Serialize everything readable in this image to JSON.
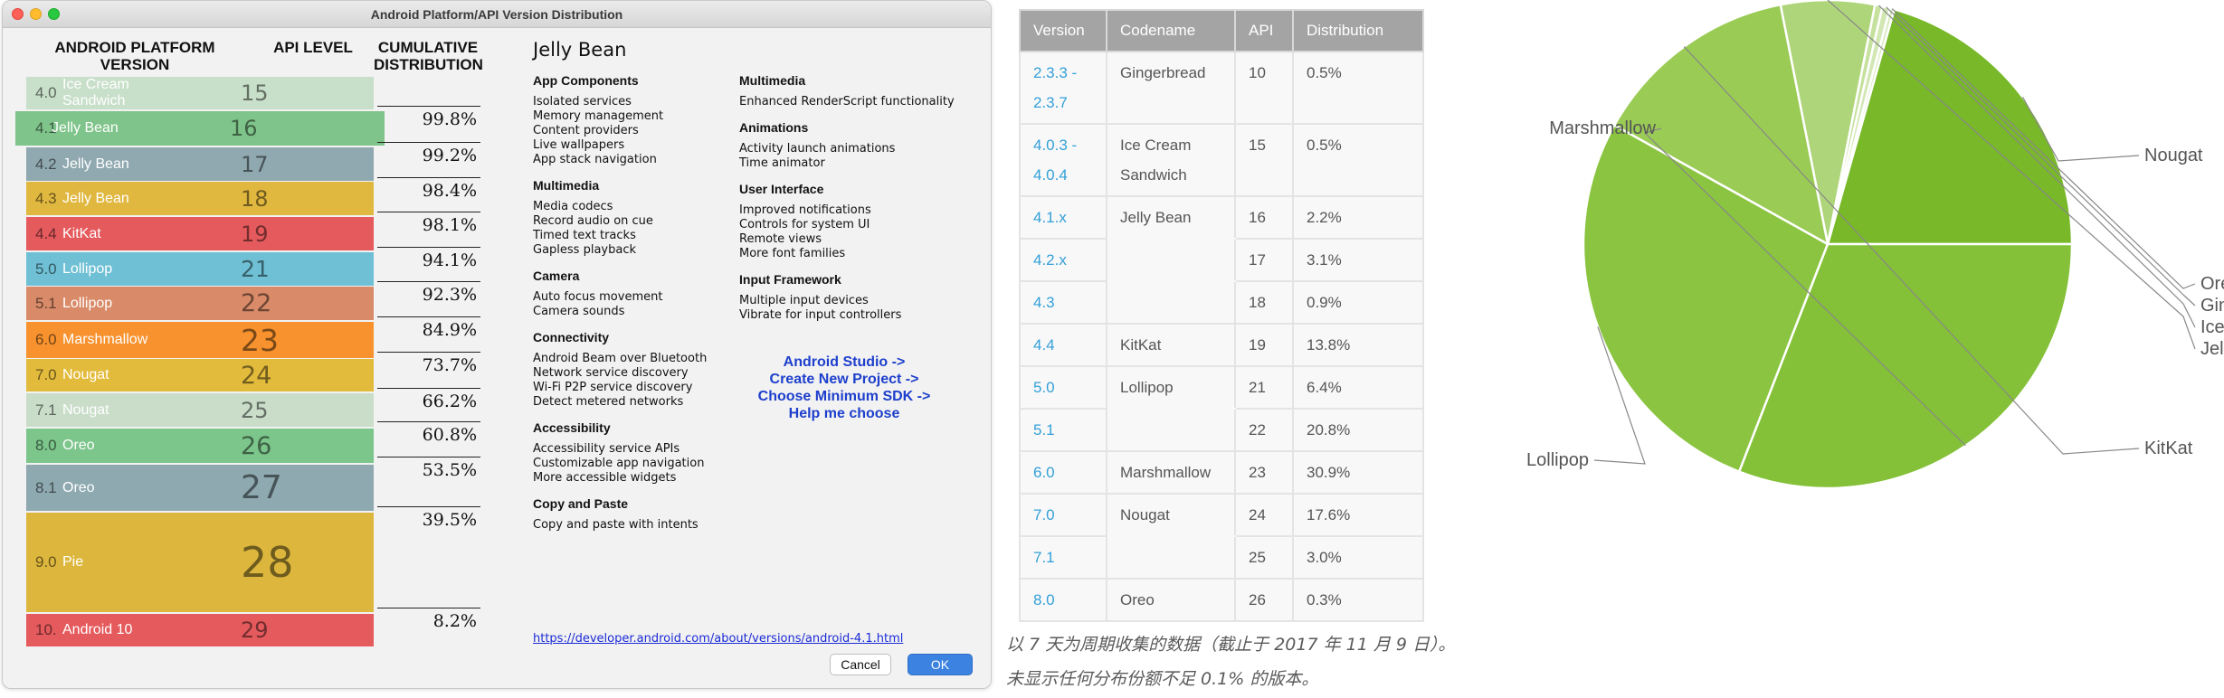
{
  "window": {
    "title": "Android Platform/API Version Distribution"
  },
  "dist_table_headers": {
    "version": "ANDROID PLATFORM\nVERSION",
    "api": "API LEVEL",
    "cumulative": "CUMULATIVE\nDISTRIBUTION"
  },
  "versions": [
    {
      "ver": "4.0",
      "name": "Ice Cream Sandwich",
      "api": "15",
      "color": "#c8dfc9",
      "cum": ""
    },
    {
      "ver": "4.1",
      "name": "Jelly Bean",
      "api": "16",
      "color": "#7fc48a",
      "cum": "99.8%"
    },
    {
      "ver": "4.2",
      "name": "Jelly Bean",
      "api": "17",
      "color": "#90a9b0",
      "cum": "99.2%"
    },
    {
      "ver": "4.3",
      "name": "Jelly Bean",
      "api": "18",
      "color": "#e0b73f",
      "cum": "98.4%"
    },
    {
      "ver": "4.4",
      "name": "KitKat",
      "api": "19",
      "color": "#e55a5d",
      "cum": "98.1%"
    },
    {
      "ver": "5.0",
      "name": "Lollipop",
      "api": "21",
      "color": "#6fc0d4",
      "cum": "94.1%"
    },
    {
      "ver": "5.1",
      "name": "Lollipop",
      "api": "22",
      "color": "#d98b69",
      "cum": "92.3%"
    },
    {
      "ver": "6.0",
      "name": "Marshmallow",
      "api": "23",
      "color": "#f7922f",
      "cum": "84.9%"
    },
    {
      "ver": "7.0",
      "name": "Nougat",
      "api": "24",
      "color": "#e3bb3c",
      "cum": "73.7%"
    },
    {
      "ver": "7.1",
      "name": "Nougat",
      "api": "25",
      "color": "#c9ddc9",
      "cum": "66.2%"
    },
    {
      "ver": "8.0",
      "name": "Oreo",
      "api": "26",
      "color": "#7cc58b",
      "cum": "60.8%"
    },
    {
      "ver": "8.1",
      "name": "Oreo",
      "api": "27",
      "color": "#8ea9b0",
      "cum": "53.5%"
    },
    {
      "ver": "9.0",
      "name": "Pie",
      "api": "28",
      "color": "#ddb73d",
      "cum": "39.5%"
    },
    {
      "ver": "10.",
      "name": "Android 10",
      "api": "29",
      "color": "#e55a5d",
      "cum": "8.2%"
    }
  ],
  "info": {
    "title": "Jelly Bean",
    "left_sections": [
      {
        "heading": "App Components",
        "items": [
          "Isolated services",
          "Memory management",
          "Content providers",
          "Live wallpapers",
          "App stack navigation"
        ]
      },
      {
        "heading": "Multimedia",
        "items": [
          "Media codecs",
          "Record audio on cue",
          "Timed text tracks",
          "Gapless playback"
        ]
      },
      {
        "heading": "Camera",
        "items": [
          "Auto focus movement",
          "Camera sounds"
        ]
      },
      {
        "heading": "Connectivity",
        "items": [
          "Android Beam over Bluetooth",
          "Network service discovery",
          "Wi-Fi P2P service discovery",
          "Detect metered networks"
        ]
      },
      {
        "heading": "Accessibility",
        "items": [
          "Accessibility service APIs",
          "Customizable app navigation",
          "More accessible widgets"
        ]
      },
      {
        "heading": "Copy and Paste",
        "items": [
          "Copy and paste with intents"
        ]
      }
    ],
    "right_sections": [
      {
        "heading": "Multimedia",
        "items": [
          "Enhanced RenderScript functionality"
        ]
      },
      {
        "heading": "Animations",
        "items": [
          "Activity launch animations",
          "Time animator"
        ]
      },
      {
        "heading": "User Interface",
        "items": [
          "Improved notifications",
          "Controls for system UI",
          "Remote views",
          "More font families"
        ]
      },
      {
        "heading": "Input Framework",
        "items": [
          "Multiple input devices",
          "Vibrate for input controllers"
        ]
      }
    ],
    "studio_hint": [
      "Android Studio ->",
      "Create New Project ->",
      "Choose Minimum SDK ->",
      "Help me choose"
    ],
    "doc_link": "https://developer.android.com/about/versions/android-4.1.html"
  },
  "buttons": {
    "cancel": "Cancel",
    "ok": "OK"
  },
  "table": {
    "headers": [
      "Version",
      "Codename",
      "API",
      "Distribution"
    ],
    "rows": [
      {
        "version": "2.3.3 -\n2.3.7",
        "codename": "Gingerbread",
        "api": "10",
        "dist": "0.5%"
      },
      {
        "version": "4.0.3 -\n4.0.4",
        "codename": "Ice Cream\nSandwich",
        "api": "15",
        "dist": "0.5%"
      },
      {
        "version": "4.1.x",
        "codename": "Jelly Bean",
        "api": "16",
        "dist": "2.2%"
      },
      {
        "version": "4.2.x",
        "codename": "",
        "api": "17",
        "dist": "3.1%"
      },
      {
        "version": "4.3",
        "codename": "",
        "api": "18",
        "dist": "0.9%"
      },
      {
        "version": "4.4",
        "codename": "KitKat",
        "api": "19",
        "dist": "13.8%"
      },
      {
        "version": "5.0",
        "codename": "Lollipop",
        "api": "21",
        "dist": "6.4%"
      },
      {
        "version": "5.1",
        "codename": "",
        "api": "22",
        "dist": "20.8%"
      },
      {
        "version": "6.0",
        "codename": "Marshmallow",
        "api": "23",
        "dist": "30.9%"
      },
      {
        "version": "7.0",
        "codename": "Nougat",
        "api": "24",
        "dist": "17.6%"
      },
      {
        "version": "7.1",
        "codename": "",
        "api": "25",
        "dist": "3.0%"
      },
      {
        "version": "8.0",
        "codename": "Oreo",
        "api": "26",
        "dist": "0.3%"
      }
    ]
  },
  "caption": [
    "以 7 天为周期收集的数据（截止于 2017 年 11 月 9 日）。",
    "未显示任何分布份额不足 0.1% 的版本。"
  ],
  "chart_data": {
    "type": "pie",
    "slices": [
      {
        "label": "Nougat",
        "value": 20.6,
        "color": "#78b829"
      },
      {
        "label": "Oreo",
        "value": 0.3,
        "color": "#dcebc5"
      },
      {
        "label": "Gingerbread",
        "value": 0.5,
        "color": "#d2e7b3"
      },
      {
        "label": "Ice Cream Sandwich",
        "value": 0.5,
        "color": "#c6e19e"
      },
      {
        "label": "Jelly Bean",
        "value": 6.2,
        "color": "#afd57a"
      },
      {
        "label": "KitKat",
        "value": 13.8,
        "color": "#9acb55"
      },
      {
        "label": "Lollipop",
        "value": 27.2,
        "color": "#8ac440"
      },
      {
        "label": "Marshmallow",
        "value": 30.9,
        "color": "#84c038"
      }
    ]
  }
}
